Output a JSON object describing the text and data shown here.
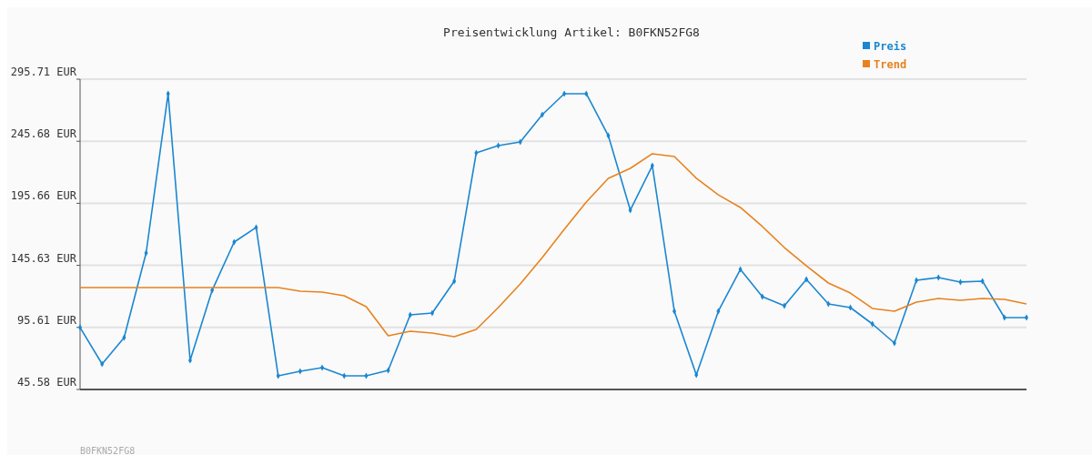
{
  "chart_data": {
    "type": "line",
    "title": "Preisentwicklung Artikel: B0FKN52FG8",
    "categories": [
      null,
      null,
      null,
      null,
      null,
      null,
      null,
      null,
      null,
      null,
      null,
      null,
      null,
      null,
      null,
      null,
      null,
      null,
      null,
      null,
      null,
      null,
      null,
      null,
      null,
      null,
      null,
      null,
      null,
      null,
      null,
      null,
      null,
      null,
      null,
      null,
      null,
      null,
      null,
      null,
      null,
      null,
      null,
      null
    ],
    "series": [
      {
        "name": "Preis",
        "color": "#1b87d0",
        "marker": "diamond",
        "values": [
          95.6,
          66.1,
          87.4,
          155.6,
          284.0,
          69.1,
          125.5,
          164.4,
          176.2,
          56.6,
          60.3,
          63.2,
          56.6,
          56.6,
          61.0,
          105.7,
          107.2,
          132.9,
          236.3,
          242.2,
          245.1,
          267.1,
          284.0,
          284.0,
          250.2,
          190.1,
          226.0,
          108.7,
          57.3,
          108.7,
          142.4,
          120.4,
          113.1,
          134.4,
          114.5,
          111.6,
          98.4,
          83.0,
          133.6,
          135.8,
          132.2,
          132.9,
          103.5,
          103.5
        ]
      },
      {
        "name": "Trend",
        "color": "#e8821e",
        "marker": "none",
        "values": [
          127.7,
          127.7,
          127.7,
          127.7,
          127.7,
          127.7,
          127.7,
          127.7,
          127.7,
          127.7,
          124.8,
          124.1,
          121.1,
          112.3,
          88.9,
          92.5,
          91.1,
          88.1,
          94.0,
          111.6,
          130.7,
          151.9,
          174.7,
          196.7,
          215.8,
          223.8,
          235.6,
          233.4,
          215.8,
          202.5,
          192.3,
          176.9,
          160.0,
          145.3,
          131.4,
          123.3,
          110.9,
          108.7,
          116.0,
          118.9,
          117.5,
          118.9,
          118.2,
          114.5
        ]
      }
    ],
    "ylim": [
      45.58,
      295.71
    ],
    "yticks": [
      {
        "value": 45.58,
        "label": "45.58 EUR"
      },
      {
        "value": 95.61,
        "label": "95.61 EUR"
      },
      {
        "value": 145.63,
        "label": "145.63 EUR"
      },
      {
        "value": 195.66,
        "label": "195.66 EUR"
      },
      {
        "value": 245.68,
        "label": "245.68 EUR"
      },
      {
        "value": 295.71,
        "label": "295.71 EUR"
      }
    ],
    "grid": "y",
    "legend": "top right",
    "line_style": "solid",
    "annotations": [
      "B0FKN52FG8"
    ]
  }
}
